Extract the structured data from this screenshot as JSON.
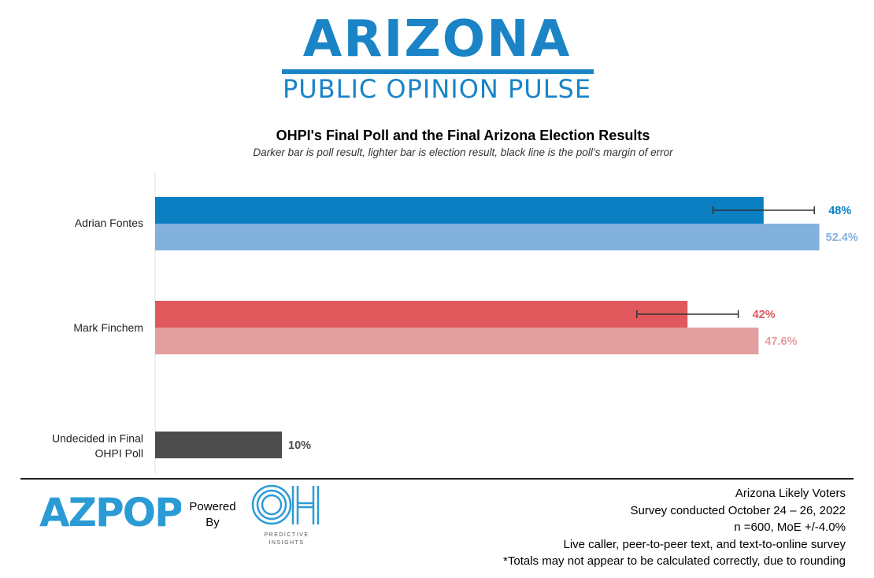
{
  "logo": {
    "main": "ARIZONA",
    "sub": "PUBLIC OPINION PULSE"
  },
  "chart_data": {
    "type": "bar",
    "orientation": "horizontal",
    "title": "OHPI's Final Poll and the Final Arizona Election Results",
    "subtitle": "Darker bar is poll result, lighter bar is election result, black line is the poll’s margin of error",
    "xlim": [
      0,
      60
    ],
    "grid": false,
    "categories": [
      "Adrian Fontes",
      "Mark Finchem",
      "Undecided in Final OHPI Poll"
    ],
    "category_lines": [
      [
        "Adrian Fontes"
      ],
      [
        "Mark Finchem"
      ],
      [
        "Undecided in Final",
        "OHPI Poll"
      ]
    ],
    "bars": [
      {
        "category": "Adrian Fontes",
        "kind": "poll",
        "value": 48,
        "label": "48%",
        "error": 4.0,
        "color": "#0a7fc2",
        "label_color": "#0a7fc2"
      },
      {
        "category": "Adrian Fontes",
        "kind": "election",
        "value": 52.4,
        "label": "52.4%",
        "color": "#82b1de",
        "label_color": "#82b1de"
      },
      {
        "category": "Mark Finchem",
        "kind": "poll",
        "value": 42,
        "label": "42%",
        "error": 4.0,
        "color": "#e0585c",
        "label_color": "#e0585c"
      },
      {
        "category": "Mark Finchem",
        "kind": "election",
        "value": 47.6,
        "label": "47.6%",
        "color": "#e39e9f",
        "label_color": "#e39e9f"
      },
      {
        "category": "Undecided in Final OHPI Poll",
        "kind": "poll",
        "value": 10,
        "label": "10%",
        "color": "#4d4d4d",
        "label_color": "#4d4d4d"
      }
    ]
  },
  "footer": {
    "powered_by": [
      "Powered",
      "By"
    ],
    "azpop_logo": "AZPOP",
    "oh_logo": "OH",
    "oh_tagline": [
      "PREDICTIVE",
      "INSIGHTS"
    ],
    "lines": [
      "Arizona Likely Voters",
      "Survey conducted October 24 – 26, 2022",
      "n =600, MoE +/-4.0%",
      "Live caller, peer-to-peer text, and text-to-online survey",
      "*Totals may not appear to be calculated correctly, due to rounding"
    ]
  },
  "colors": {
    "brand_blue": "#1a84c7",
    "azpop_blue": "#2b9bd6",
    "oh_blue": "#2b9bd6"
  }
}
